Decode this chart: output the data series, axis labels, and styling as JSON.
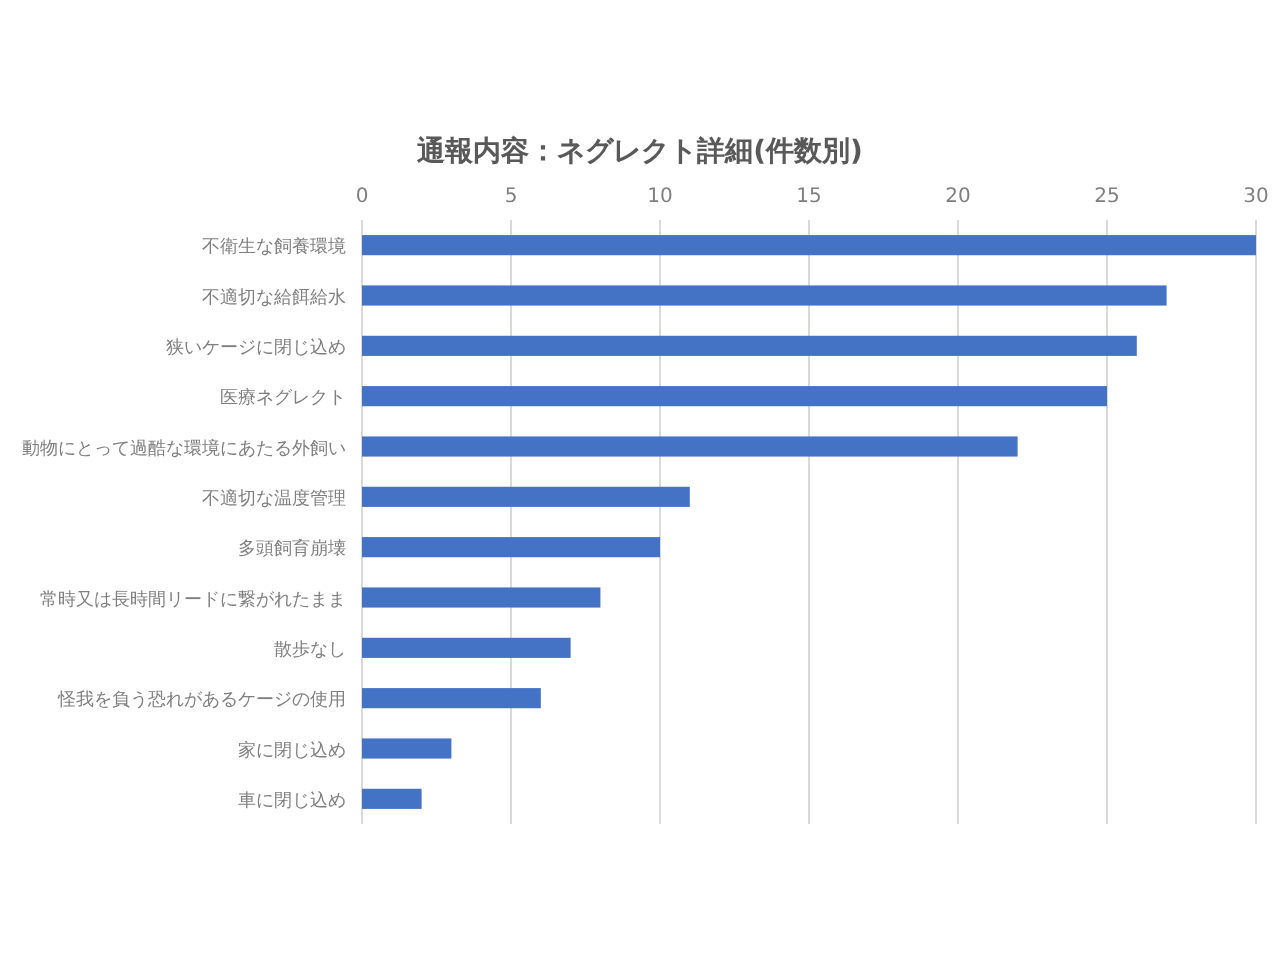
{
  "chart_data": {
    "type": "bar",
    "orientation": "horizontal",
    "title": "通報内容：ネグレクト詳細(件数別)",
    "categories": [
      "不衛生な飼養環境",
      "不適切な給餌給水",
      "狭いケージに閉じ込め",
      "医療ネグレクト",
      "動物にとって過酷な環境にあたる外飼い",
      "不適切な温度管理",
      "多頭飼育崩壊",
      "常時又は長時間リードに繋がれたまま",
      "散歩なし",
      "怪我を負う恐れがあるケージの使用",
      "家に閉じ込め",
      "車に閉じ込め"
    ],
    "values": [
      30,
      27,
      26,
      25,
      22,
      11,
      10,
      8,
      7,
      6,
      3,
      2
    ],
    "color": "#4472c4",
    "xlim": [
      0,
      30
    ],
    "xticks": [
      0,
      5,
      10,
      15,
      20,
      25,
      30
    ],
    "grid": "x"
  }
}
